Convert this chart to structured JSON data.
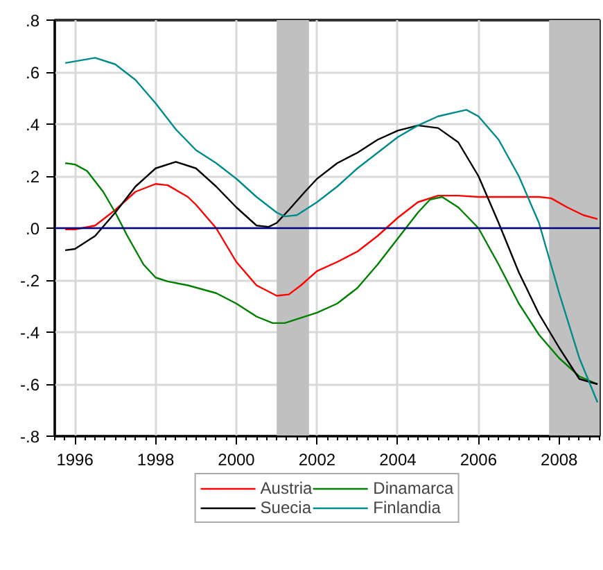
{
  "chart_data": {
    "type": "line",
    "xlim": [
      1995.5,
      2009.0
    ],
    "ylim": [
      -0.8,
      0.8
    ],
    "xticks": [
      1996,
      1998,
      2000,
      2002,
      2004,
      2006,
      2008
    ],
    "yticks": [
      {
        "value": -0.8,
        "label": "-.8"
      },
      {
        "value": -0.6,
        "label": "-.6"
      },
      {
        "value": -0.4,
        "label": "-.4"
      },
      {
        "value": -0.2,
        "label": "-.2"
      },
      {
        "value": 0,
        "label": ".0"
      },
      {
        "value": 0.2,
        "label": ".2"
      },
      {
        "value": 0.4,
        "label": ".4"
      },
      {
        "value": 0.6,
        "label": ".6"
      },
      {
        "value": 0.8,
        "label": ".8"
      }
    ],
    "grid": true,
    "legend": "bottom",
    "marker": "none",
    "line_style": "solid",
    "ref_lines": [
      {
        "axis": "y",
        "value": 0,
        "color": "#000080"
      }
    ],
    "bands": [
      {
        "axis": "x",
        "from": 2001.0,
        "to": 2001.8,
        "color": "#c0c0c0"
      },
      {
        "axis": "x",
        "from": 2007.75,
        "to": 2009.0,
        "color": "#c0c0c0"
      }
    ],
    "series": [
      {
        "name": "Austria",
        "color": "#ff0000",
        "x": [
          1995.76,
          1996,
          1996.5,
          1997,
          1997.5,
          1998,
          1998.3,
          1998.8,
          1999,
          1999.5,
          2000,
          2000.5,
          2001,
          2001.3,
          2001.6,
          2002,
          2002.5,
          2003,
          2003.5,
          2004,
          2004.5,
          2005,
          2005.5,
          2006,
          2006.5,
          2007,
          2007.5,
          2007.8,
          2008.2,
          2008.6,
          2008.95
        ],
        "values": [
          -0.005,
          -0.005,
          0.01,
          0.07,
          0.14,
          0.17,
          0.165,
          0.12,
          0.09,
          0.0,
          -0.13,
          -0.22,
          -0.26,
          -0.255,
          -0.22,
          -0.165,
          -0.13,
          -0.09,
          -0.03,
          0.04,
          0.1,
          0.125,
          0.125,
          0.12,
          0.12,
          0.12,
          0.12,
          0.115,
          0.08,
          0.05,
          0.035
        ]
      },
      {
        "name": "Dinamarca",
        "color": "#008000",
        "x": [
          1995.76,
          1996,
          1996.3,
          1996.7,
          1997,
          1997.3,
          1997.7,
          1998,
          1998.3,
          1998.8,
          1999.5,
          2000,
          2000.5,
          2000.9,
          2001.2,
          2001.6,
          2002,
          2002.5,
          2003,
          2003.5,
          2004,
          2004.5,
          2004.8,
          2005.1,
          2005.5,
          2006,
          2006.5,
          2007,
          2007.5,
          2008,
          2008.5,
          2008.95
        ],
        "values": [
          0.25,
          0.245,
          0.22,
          0.14,
          0.06,
          -0.03,
          -0.14,
          -0.19,
          -0.205,
          -0.22,
          -0.25,
          -0.29,
          -0.34,
          -0.365,
          -0.365,
          -0.345,
          -0.325,
          -0.29,
          -0.23,
          -0.14,
          -0.04,
          0.06,
          0.11,
          0.12,
          0.08,
          0.0,
          -0.14,
          -0.29,
          -0.41,
          -0.5,
          -0.57,
          -0.6
        ]
      },
      {
        "name": "Suecia",
        "color": "#000000",
        "x": [
          1995.76,
          1996,
          1996.5,
          1997,
          1997.5,
          1998,
          1998.5,
          1999,
          1999.5,
          2000,
          2000.5,
          2000.8,
          2001,
          2001.3,
          2001.7,
          2002,
          2002.5,
          2003,
          2003.5,
          2004,
          2004.5,
          2005,
          2005.5,
          2006,
          2006.5,
          2007,
          2007.5,
          2008,
          2008.5,
          2008.95
        ],
        "values": [
          -0.085,
          -0.08,
          -0.03,
          0.06,
          0.16,
          0.23,
          0.255,
          0.23,
          0.16,
          0.08,
          0.01,
          0.005,
          0.02,
          0.07,
          0.14,
          0.19,
          0.25,
          0.29,
          0.34,
          0.375,
          0.395,
          0.385,
          0.33,
          0.2,
          0.02,
          -0.17,
          -0.33,
          -0.46,
          -0.58,
          -0.6
        ]
      },
      {
        "name": "Finlandia",
        "color": "#008b8b",
        "x": [
          1995.76,
          1996.5,
          1997,
          1997.5,
          1998,
          1998.5,
          1999,
          1999.5,
          2000,
          2000.5,
          2001,
          2001.2,
          2001.5,
          2002,
          2002.5,
          2003,
          2003.5,
          2004,
          2004.5,
          2005,
          2005.7,
          2006,
          2006.5,
          2007,
          2007.5,
          2008,
          2008.5,
          2008.95
        ],
        "values": [
          0.635,
          0.655,
          0.63,
          0.57,
          0.48,
          0.38,
          0.3,
          0.25,
          0.19,
          0.12,
          0.06,
          0.045,
          0.05,
          0.1,
          0.16,
          0.23,
          0.29,
          0.35,
          0.395,
          0.43,
          0.455,
          0.43,
          0.34,
          0.2,
          0.02,
          -0.25,
          -0.5,
          -0.67
        ]
      }
    ]
  }
}
